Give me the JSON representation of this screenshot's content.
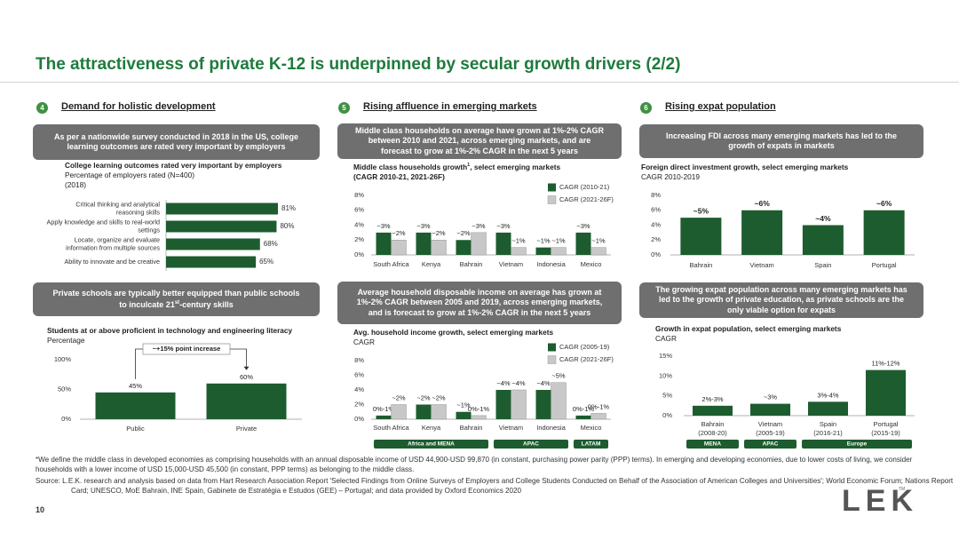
{
  "header": {
    "title": "The attractiveness of private K-12 is underpinned by secular growth drivers (2/2)"
  },
  "sections": [
    {
      "number": "4",
      "heading": "Demand for holistic development"
    },
    {
      "number": "5",
      "heading": "Rising affluence in emerging markets"
    },
    {
      "number": "6",
      "heading": "Rising expat population"
    }
  ],
  "callouts": [
    {
      "text": "As per a nationwide survey conducted in 2018 in the US, college learning outcomes are rated very important by employers"
    },
    {
      "text": "Middle class households on average have grown at 1%-2% CAGR between 2010 and 2021, across emerging markets, and are forecast to grow at 1%-2% CAGR in the next 5 years"
    },
    {
      "text": "Increasing FDI across many emerging markets has led to the growth of expats in markets"
    },
    {
      "text": "Private schools are typically better equipped than public schools to inculcate 21",
      "sup": "st",
      "tail": "-century skills"
    },
    {
      "text": "Average household disposable income on average has grown at 1%-2% CAGR between 2005 and 2019, across emerging markets, and is forecast to grow at 1%-2% CAGR in the next 5 years"
    },
    {
      "text": "The growing expat population across many emerging markets has led to the growth of private education, as private schools are the only viable option for expats"
    }
  ],
  "chart_data": [
    {
      "type": "hbar",
      "title": "College learning outcomes rated very important by employers",
      "subtitle": [
        "Percentage of employers rated (N=400)",
        "(2018)"
      ],
      "categories": [
        "Critical thinking and analytical reasoning skills",
        "Apply knowledge and skills to real-world settings",
        "Locate, organize and evaluate information from multiple sources",
        "Ability to innovate and be creative"
      ],
      "values": [
        81,
        80,
        68,
        65
      ],
      "value_labels": [
        "81%",
        "80%",
        "68%",
        "65%"
      ],
      "color": "#1d5c2f"
    },
    {
      "type": "bar",
      "title": "Middle class households growth",
      "title_sup": "1",
      "title_tail": ", select emerging markets",
      "subtitle": [
        "(CAGR 2010-21, 2021-26F)"
      ],
      "subtitle_bold": true,
      "categories": [
        "South Africa",
        "Kenya",
        "Bahrain",
        "Vietnam",
        "Indonesia",
        "Mexico"
      ],
      "series": [
        {
          "name": "CAGR (2010-21)",
          "color": "#1d5c2f",
          "values": [
            3,
            3,
            2,
            3,
            1,
            3
          ],
          "value_labels": [
            "~3%",
            "~3%",
            "~2%",
            "~3%",
            "~1%",
            "~3%"
          ]
        },
        {
          "name": "CAGR (2021-26F)",
          "color": "#c8c8c8",
          "values": [
            2,
            2,
            3,
            1,
            1,
            1
          ],
          "value_labels": [
            "~2%",
            "~2%",
            "~3%",
            "~1%",
            "~1%",
            "~1%"
          ]
        }
      ],
      "ylim": [
        0,
        8
      ],
      "yticks": [
        {
          "value": 0,
          "label": "0%"
        },
        {
          "value": 2,
          "label": "2%"
        },
        {
          "value": 4,
          "label": "4%"
        },
        {
          "value": 6,
          "label": "6%"
        },
        {
          "value": 8,
          "label": "8%"
        }
      ],
      "grid": false,
      "legend": "top-right"
    },
    {
      "type": "bar",
      "title": "Foreign direct investment growth, select emerging markets",
      "subtitle": [
        "CAGR 2010-2019"
      ],
      "categories": [
        "Bahrain",
        "Vietnam",
        "Spain",
        "Portugal"
      ],
      "values": [
        5,
        6,
        4,
        6
      ],
      "value_labels": [
        "~5%",
        "~6%",
        "~4%",
        "~6%"
      ],
      "color": "#1d5c2f",
      "ylim": [
        0,
        8
      ],
      "yticks": [
        {
          "value": 0,
          "label": "0%"
        },
        {
          "value": 2,
          "label": "2%"
        },
        {
          "value": 4,
          "label": "4%"
        },
        {
          "value": 6,
          "label": "6%"
        },
        {
          "value": 8,
          "label": "8%"
        }
      ],
      "grid": false
    },
    {
      "type": "bar",
      "title": "Students at or above proficient in technology and engineering literacy",
      "subtitle": [
        "Percentage"
      ],
      "categories": [
        "Public",
        "Private"
      ],
      "values": [
        45,
        60
      ],
      "value_labels": [
        "45%",
        "60%"
      ],
      "color": "#1d5c2f",
      "ylim": [
        0,
        100
      ],
      "yticks": [
        {
          "value": 0,
          "label": "0%"
        },
        {
          "value": 50,
          "label": "50%"
        },
        {
          "value": 100,
          "label": "100%"
        }
      ],
      "annotation": "~+15% point increase",
      "grid": false
    },
    {
      "type": "bar",
      "title": "Avg. household income growth, select emerging markets",
      "subtitle": [
        "CAGR"
      ],
      "categories": [
        "South Africa",
        "Kenya",
        "Bahrain",
        "Vietnam",
        "Indonesia",
        "Mexico"
      ],
      "series": [
        {
          "name": "CAGR (2005-19)",
          "color": "#1d5c2f",
          "values": [
            0.5,
            2,
            1,
            4,
            4,
            0.5
          ],
          "value_labels": [
            "0%-1%",
            "~2%",
            "~1%",
            "~4%",
            "~4%",
            "0%-1%"
          ]
        },
        {
          "name": "CAGR (2021-26F)",
          "color": "#c8c8c8",
          "values": [
            2,
            2,
            0.5,
            4,
            5,
            0.8
          ],
          "value_labels": [
            "~2%",
            "~2%",
            "0%-1%",
            "~4%",
            "~5%",
            "0%-1%"
          ]
        }
      ],
      "ylim": [
        0,
        8
      ],
      "yticks": [
        {
          "value": 0,
          "label": "0%"
        },
        {
          "value": 2,
          "label": "2%"
        },
        {
          "value": 4,
          "label": "4%"
        },
        {
          "value": 6,
          "label": "6%"
        },
        {
          "value": 8,
          "label": "8%"
        }
      ],
      "grid": false,
      "legend": "top-right",
      "groups": [
        {
          "name": "Africa and MENA",
          "members": [
            "South Africa",
            "Kenya",
            "Bahrain"
          ]
        },
        {
          "name": "APAC",
          "members": [
            "Vietnam",
            "Indonesia"
          ]
        },
        {
          "name": "LATAM",
          "members": [
            "Mexico"
          ]
        }
      ]
    },
    {
      "type": "bar",
      "title": "Growth in expat population, select emerging markets",
      "subtitle": [
        "CAGR"
      ],
      "categories": [
        "Bahrain",
        "Vietnam",
        "Spain",
        "Portugal"
      ],
      "periods": [
        "(2008-20)",
        "(2005-19)",
        "(2016-21)",
        "(2015-19)"
      ],
      "values": [
        2.5,
        3,
        3.5,
        11.5
      ],
      "value_labels": [
        "2%-3%",
        "~3%",
        "3%-4%",
        "11%-12%"
      ],
      "color": "#1d5c2f",
      "ylim": [
        0,
        15
      ],
      "yticks": [
        {
          "value": 0,
          "label": "0%"
        },
        {
          "value": 5,
          "label": "5%"
        },
        {
          "value": 10,
          "label": "10%"
        },
        {
          "value": 15,
          "label": "15%"
        }
      ],
      "grid": false,
      "groups": [
        {
          "name": "MENA",
          "members": [
            "Bahrain"
          ]
        },
        {
          "name": "APAC",
          "members": [
            "Vietnam"
          ]
        },
        {
          "name": "Europe",
          "members": [
            "Spain",
            "Portugal"
          ]
        }
      ]
    }
  ],
  "footnote": "*We define the middle class in developed economies as comprising households with an annual disposable income of USD 44,900-USD 99,870 (in constant, purchasing power parity (PPP) terms). In emerging and developing economies, due to lower costs of living, we consider households with a lower income of USD 15,000-USD 45,500 (in constant, PPP terms) as belonging to the middle class.",
  "source": "Source: L.E.K. research and analysis based on data from Hart Research Association Report 'Selected Findings from Online Surveys of Employers and College Students Conducted on Behalf of the Association of American Colleges and Universities'; World Economic Forum; Nations Report Card; UNESCO, MoE Bahrain, INE Spain, Gabinete de Estratégia e Estudos (GEE) – Portugal; and data provided by Oxford Economics 2020",
  "page_number": "10",
  "logo": "LEK",
  "logo_mark": "TM"
}
